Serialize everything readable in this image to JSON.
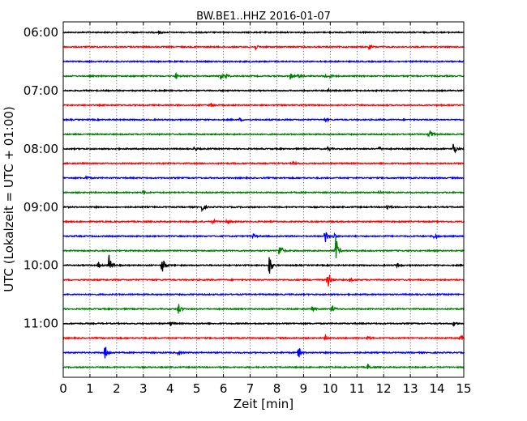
{
  "chart_data": {
    "type": "line",
    "title": "BW.BE1..HHZ 2016-01-07",
    "xlabel": "Zeit  [min]",
    "ylabel": "UTC (Lokalzeit = UTC + 01:00)",
    "xlim": [
      0,
      15
    ],
    "x_ticks": [
      "0",
      "1",
      "2",
      "3",
      "4",
      "5",
      "6",
      "7",
      "8",
      "9",
      "10",
      "11",
      "12",
      "13",
      "14",
      "15"
    ],
    "y_ticks": [
      "06:00",
      "07:00",
      "08:00",
      "09:00",
      "10:00",
      "11:00"
    ],
    "grid": true,
    "colors": [
      "#000000",
      "#ff0000",
      "#0000ff",
      "#008000"
    ],
    "traces": [
      {
        "start": "06:00",
        "color": "#000000",
        "events": [
          [
            3.55,
            2
          ]
        ]
      },
      {
        "start": "06:15",
        "color": "#ff0000",
        "events": [
          [
            7.2,
            3
          ],
          [
            11.45,
            3
          ]
        ]
      },
      {
        "start": "06:30",
        "color": "#0000ff",
        "events": []
      },
      {
        "start": "06:45",
        "color": "#008000",
        "events": [
          [
            4.2,
            4
          ],
          [
            5.9,
            4
          ],
          [
            6.1,
            3
          ],
          [
            8.5,
            4
          ],
          [
            8.8,
            3
          ],
          [
            9.8,
            3
          ],
          [
            10.0,
            2
          ]
        ]
      },
      {
        "start": "07:00",
        "color": "#000000",
        "events": [
          [
            9.9,
            2
          ]
        ]
      },
      {
        "start": "07:15",
        "color": "#ff0000",
        "events": [
          [
            5.5,
            3
          ]
        ]
      },
      {
        "start": "07:30",
        "color": "#0000ff",
        "events": [
          [
            6.6,
            2
          ],
          [
            9.8,
            2
          ]
        ]
      },
      {
        "start": "07:45",
        "color": "#008000",
        "events": [
          [
            13.7,
            10
          ]
        ]
      },
      {
        "start": "08:00",
        "color": "#000000",
        "events": [
          [
            4.9,
            3
          ],
          [
            9.9,
            3
          ],
          [
            11.8,
            3
          ],
          [
            14.6,
            9
          ]
        ]
      },
      {
        "start": "08:15",
        "color": "#ff0000",
        "events": [
          [
            8.6,
            3
          ]
        ]
      },
      {
        "start": "08:30",
        "color": "#0000ff",
        "events": [
          [
            0.85,
            3
          ]
        ]
      },
      {
        "start": "08:45",
        "color": "#008000",
        "events": [
          [
            3.0,
            3
          ],
          [
            11.8,
            2
          ]
        ]
      },
      {
        "start": "09:00",
        "color": "#000000",
        "events": [
          [
            5.2,
            5
          ],
          [
            12.1,
            5
          ]
        ]
      },
      {
        "start": "09:15",
        "color": "#ff0000",
        "events": [
          [
            5.6,
            3
          ],
          [
            6.1,
            4
          ]
        ]
      },
      {
        "start": "09:30",
        "color": "#0000ff",
        "events": [
          [
            7.1,
            3
          ],
          [
            9.8,
            10
          ],
          [
            10.1,
            4
          ],
          [
            13.9,
            5
          ]
        ]
      },
      {
        "start": "09:45",
        "color": "#008000",
        "events": [
          [
            8.1,
            12
          ],
          [
            10.2,
            18
          ]
        ]
      },
      {
        "start": "10:00",
        "color": "#000000",
        "events": [
          [
            1.3,
            4
          ],
          [
            1.7,
            15
          ],
          [
            3.7,
            13
          ],
          [
            7.7,
            16
          ],
          [
            12.5,
            3
          ]
        ]
      },
      {
        "start": "10:15",
        "color": "#ff0000",
        "events": [
          [
            9.9,
            14
          ],
          [
            10.7,
            3
          ]
        ]
      },
      {
        "start": "10:30",
        "color": "#0000ff",
        "events": []
      },
      {
        "start": "10:45",
        "color": "#008000",
        "events": [
          [
            4.3,
            8
          ],
          [
            9.3,
            3
          ],
          [
            10.05,
            6
          ]
        ]
      },
      {
        "start": "11:00",
        "color": "#000000",
        "events": [
          [
            4.0,
            3
          ],
          [
            14.6,
            3
          ]
        ]
      },
      {
        "start": "11:15",
        "color": "#ff0000",
        "events": [
          [
            9.8,
            3
          ],
          [
            11.4,
            3
          ],
          [
            14.85,
            5
          ]
        ]
      },
      {
        "start": "11:30",
        "color": "#0000ff",
        "events": [
          [
            1.55,
            10
          ],
          [
            4.3,
            3
          ],
          [
            8.8,
            9
          ]
        ]
      },
      {
        "start": "11:45",
        "color": "#008000",
        "events": [
          [
            11.4,
            4
          ]
        ]
      }
    ]
  }
}
